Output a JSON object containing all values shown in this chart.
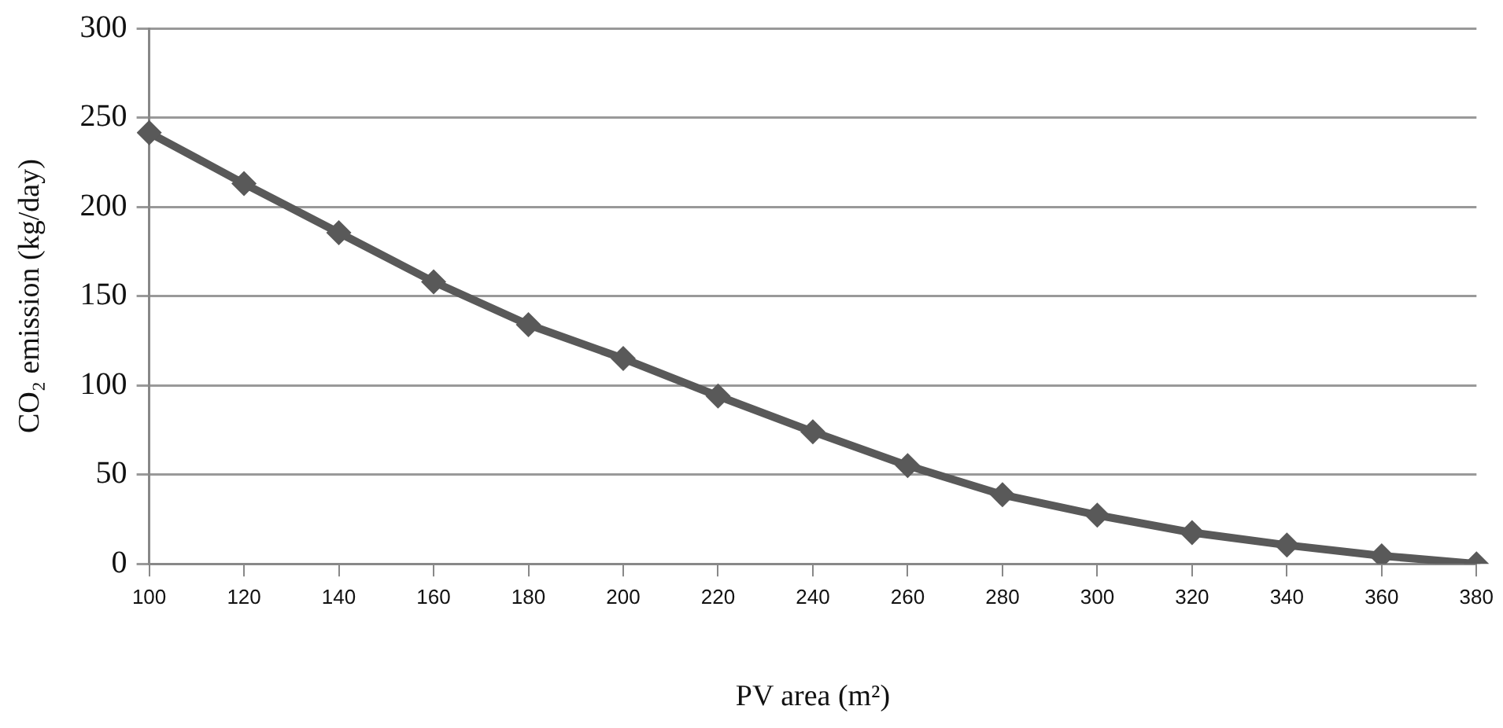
{
  "chart_data": {
    "type": "line",
    "xlabel": "PV area (m²)",
    "ylabel": "CO₂ emission (kg/day)",
    "categories": [
      "100",
      "120",
      "140",
      "160",
      "180",
      "200",
      "220",
      "240",
      "260",
      "280",
      "300",
      "320",
      "340",
      "360",
      "380"
    ],
    "series": [
      {
        "color": "#595959",
        "values": [
          241.5,
          213,
          185.5,
          158,
          134,
          115,
          94,
          74,
          55,
          38.7,
          27.3,
          17.5,
          10.5,
          4.5,
          0
        ]
      }
    ],
    "ylim": [
      0,
      300
    ],
    "yticks": [
      0,
      50,
      100,
      150,
      200,
      250,
      300
    ],
    "grid": "y",
    "legend": false,
    "marker": "diamond",
    "line_style": "solid"
  }
}
